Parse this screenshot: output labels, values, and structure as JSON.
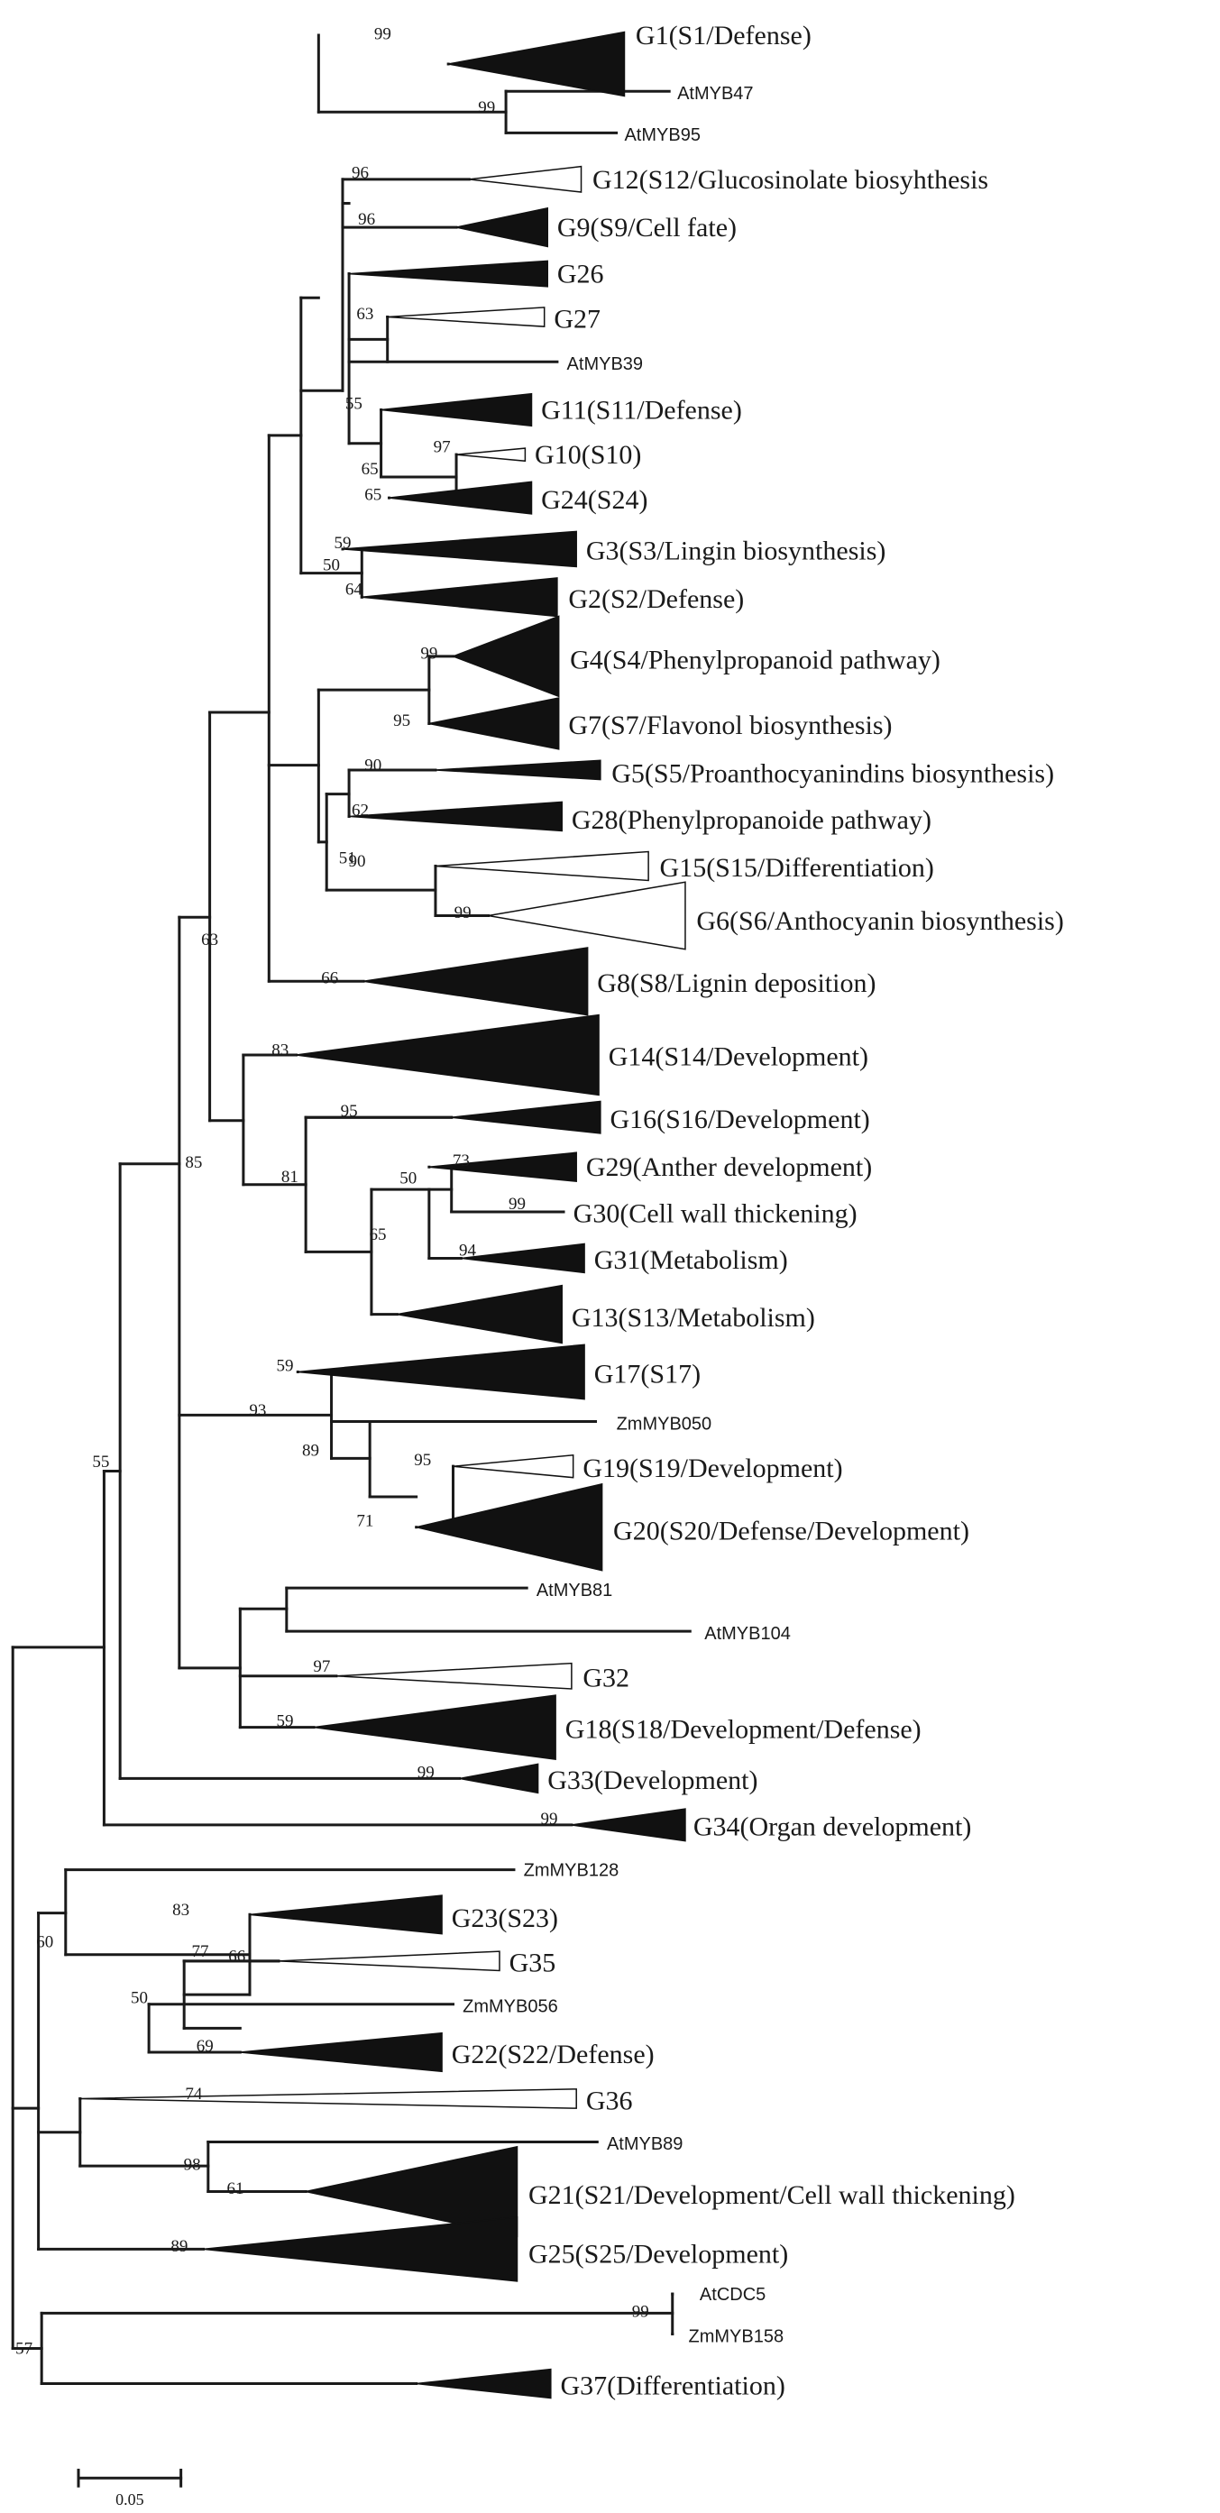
{
  "tree": {
    "scale_bar_label": "0.05",
    "clades": [
      {
        "id": "G1",
        "label": "G1(S1/Defense)",
        "fill": "filled"
      },
      {
        "id": "AtMYB47",
        "label": "AtMYB47",
        "fill": "leaf"
      },
      {
        "id": "AtMYB95",
        "label": "AtMYB95",
        "fill": "leaf"
      },
      {
        "id": "G12",
        "label": "G12(S12/Glucosinolate biosyhthesis",
        "fill": "open"
      },
      {
        "id": "G9",
        "label": "G9(S9/Cell fate)",
        "fill": "filled"
      },
      {
        "id": "G26",
        "label": "G26",
        "fill": "filled"
      },
      {
        "id": "G27",
        "label": "G27",
        "fill": "open"
      },
      {
        "id": "AtMYB39",
        "label": "AtMYB39",
        "fill": "leaf"
      },
      {
        "id": "G11",
        "label": "G11(S11/Defense)",
        "fill": "filled"
      },
      {
        "id": "G10",
        "label": "G10(S10)",
        "fill": "open"
      },
      {
        "id": "G24",
        "label": "G24(S24)",
        "fill": "filled"
      },
      {
        "id": "G3",
        "label": "G3(S3/Lingin biosynthesis)",
        "fill": "filled"
      },
      {
        "id": "G2",
        "label": "G2(S2/Defense)",
        "fill": "filled"
      },
      {
        "id": "G4",
        "label": "G4(S4/Phenylpropanoid pathway)",
        "fill": "filled"
      },
      {
        "id": "G7",
        "label": "G7(S7/Flavonol biosynthesis)",
        "fill": "filled"
      },
      {
        "id": "G5",
        "label": "G5(S5/Proanthocyanindins biosynthesis)",
        "fill": "filled"
      },
      {
        "id": "G28",
        "label": "G28(Phenylpropanoide pathway)",
        "fill": "filled"
      },
      {
        "id": "G15",
        "label": "G15(S15/Differentiation)",
        "fill": "open"
      },
      {
        "id": "G6",
        "label": "G6(S6/Anthocyanin biosynthesis)",
        "fill": "open"
      },
      {
        "id": "G8",
        "label": "G8(S8/Lignin deposition)",
        "fill": "filled"
      },
      {
        "id": "G14",
        "label": "G14(S14/Development)",
        "fill": "filled"
      },
      {
        "id": "G16",
        "label": "G16(S16/Development)",
        "fill": "filled"
      },
      {
        "id": "G29",
        "label": "G29(Anther development)",
        "fill": "filled"
      },
      {
        "id": "G30",
        "label": "G30(Cell wall thickening)",
        "fill": "leaf"
      },
      {
        "id": "G31",
        "label": "G31(Metabolism)",
        "fill": "filled"
      },
      {
        "id": "G13",
        "label": "G13(S13/Metabolism)",
        "fill": "filled"
      },
      {
        "id": "G17",
        "label": "G17(S17)",
        "fill": "filled"
      },
      {
        "id": "ZmMYB050",
        "label": "ZmMYB050",
        "fill": "leaf"
      },
      {
        "id": "G19",
        "label": "G19(S19/Development)",
        "fill": "open"
      },
      {
        "id": "G20",
        "label": "G20(S20/Defense/Development)",
        "fill": "filled"
      },
      {
        "id": "AtMYB81",
        "label": "AtMYB81",
        "fill": "leaf"
      },
      {
        "id": "AtMYB104",
        "label": "AtMYB104",
        "fill": "leaf"
      },
      {
        "id": "G32",
        "label": "G32",
        "fill": "open"
      },
      {
        "id": "G18",
        "label": "G18(S18/Development/Defense)",
        "fill": "filled"
      },
      {
        "id": "G33",
        "label": "G33(Development)",
        "fill": "filled"
      },
      {
        "id": "G34",
        "label": "G34(Organ development)",
        "fill": "filled"
      },
      {
        "id": "ZmMYB128",
        "label": "ZmMYB128",
        "fill": "leaf"
      },
      {
        "id": "G23",
        "label": "G23(S23)",
        "fill": "filled"
      },
      {
        "id": "G35",
        "label": "G35",
        "fill": "open"
      },
      {
        "id": "ZmMYB056",
        "label": "ZmMYB056",
        "fill": "leaf"
      },
      {
        "id": "G22",
        "label": "G22(S22/Defense)",
        "fill": "filled"
      },
      {
        "id": "G36",
        "label": "G36",
        "fill": "open"
      },
      {
        "id": "AtMYB89",
        "label": "AtMYB89",
        "fill": "leaf"
      },
      {
        "id": "G21",
        "label": "G21(S21/Development/Cell wall thickening)",
        "fill": "filled"
      },
      {
        "id": "G25",
        "label": "G25(S25/Development)",
        "fill": "filled"
      },
      {
        "id": "AtCDC5",
        "label": "AtCDC5",
        "fill": "leaf"
      },
      {
        "id": "ZmMYB158",
        "label": "ZmMYB158",
        "fill": "leaf"
      },
      {
        "id": "G37",
        "label": "G37(Differentiation)",
        "fill": "filled"
      }
    ],
    "bootstrap_values": [
      "99",
      "99",
      "96",
      "96",
      "63",
      "55",
      "97",
      "65",
      "65",
      "59",
      "50",
      "64",
      "99",
      "95",
      "90",
      "62",
      "51",
      "90",
      "99",
      "66",
      "63",
      "83",
      "95",
      "81",
      "73",
      "50",
      "99",
      "65",
      "94",
      "85",
      "59",
      "93",
      "89",
      "95",
      "71",
      "55",
      "97",
      "59",
      "99",
      "99",
      "83",
      "77",
      "66",
      "50",
      "69",
      "60",
      "74",
      "98",
      "61",
      "89",
      "99",
      "57"
    ]
  }
}
